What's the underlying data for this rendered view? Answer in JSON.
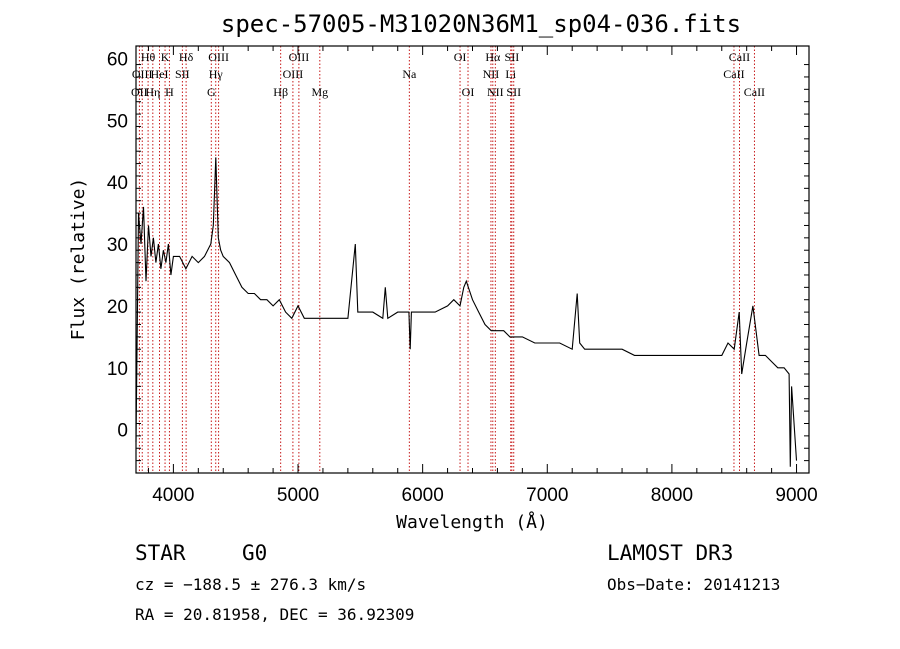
{
  "chart_data": {
    "type": "line",
    "title": "spec-57005-M31020N36M1_sp04-036.fits",
    "xlabel": "Wavelength (Å)",
    "ylabel": "Flux (relative)",
    "xlim": [
      3700,
      9100
    ],
    "ylim": [
      -7,
      62
    ],
    "x_ticks": [
      4000,
      5000,
      6000,
      7000,
      8000,
      9000
    ],
    "y_ticks": [
      0,
      10,
      20,
      30,
      40,
      50,
      60
    ],
    "grid": false,
    "series": [
      {
        "name": "flux",
        "color": "#000000",
        "x": [
          3700,
          3720,
          3740,
          3760,
          3780,
          3800,
          3820,
          3840,
          3860,
          3880,
          3900,
          3920,
          3940,
          3960,
          3980,
          4000,
          4050,
          4100,
          4150,
          4200,
          4250,
          4300,
          4320,
          4340,
          4360,
          4380,
          4400,
          4450,
          4500,
          4550,
          4600,
          4650,
          4700,
          4750,
          4800,
          4850,
          4900,
          4950,
          5000,
          5050,
          5100,
          5150,
          5200,
          5300,
          5400,
          5460,
          5480,
          5500,
          5600,
          5680,
          5700,
          5720,
          5800,
          5890,
          5900,
          5910,
          6000,
          6100,
          6200,
          6250,
          6300,
          6330,
          6350,
          6400,
          6450,
          6500,
          6550,
          6600,
          6650,
          6700,
          6800,
          6900,
          7000,
          7100,
          7200,
          7240,
          7260,
          7300,
          7400,
          7500,
          7600,
          7700,
          7800,
          7900,
          8000,
          8100,
          8200,
          8300,
          8400,
          8450,
          8500,
          8540,
          8560,
          8600,
          8650,
          8700,
          8750,
          8800,
          8850,
          8900,
          8940,
          8950,
          8960,
          9000
        ],
        "y": [
          -2,
          35,
          30,
          36,
          24,
          33,
          28,
          31,
          27,
          30,
          26,
          29,
          27,
          30,
          25,
          28,
          28,
          26,
          28,
          27,
          28,
          30,
          33,
          44,
          31,
          29,
          28,
          27,
          25,
          23,
          22,
          22,
          21,
          21,
          20,
          21,
          19,
          18,
          20,
          18,
          18,
          18,
          18,
          18,
          18,
          30,
          19,
          19,
          19,
          18,
          23,
          18,
          19,
          19,
          13,
          19,
          19,
          19,
          20,
          21,
          20,
          23,
          24,
          21,
          19,
          17,
          16,
          16,
          16,
          15,
          15,
          14,
          14,
          14,
          13,
          22,
          14,
          13,
          13,
          13,
          13,
          12,
          12,
          12,
          12,
          12,
          12,
          12,
          12,
          14,
          13,
          19,
          9,
          14,
          20,
          12,
          12,
          11,
          10,
          10,
          9,
          -6,
          7,
          -5
        ]
      }
    ],
    "line_markers": {
      "color": "#c00000",
      "lines": [
        {
          "wl": 3727,
          "label": "OII",
          "row": 3
        },
        {
          "wl": 3750,
          "label": "OIII",
          "row": 2
        },
        {
          "wl": 3797,
          "label": "Hθ",
          "row": 1
        },
        {
          "wl": 3835,
          "label": "Hη",
          "row": 3
        },
        {
          "wl": 3889,
          "label": "HeI",
          "row": 2
        },
        {
          "wl": 3933,
          "label": "K",
          "row": 1
        },
        {
          "wl": 3968,
          "label": "H",
          "row": 3
        },
        {
          "wl": 4072,
          "label": "SII",
          "row": 2
        },
        {
          "wl": 4102,
          "label": "Hδ",
          "row": 1
        },
        {
          "wl": 4304,
          "label": "G",
          "row": 3
        },
        {
          "wl": 4340,
          "label": "Hγ",
          "row": 2
        },
        {
          "wl": 4363,
          "label": "OIII",
          "row": 1
        },
        {
          "wl": 4861,
          "label": "Hβ",
          "row": 3
        },
        {
          "wl": 4959,
          "label": "OIII",
          "row": 2
        },
        {
          "wl": 5007,
          "label": "OIII",
          "row": 1
        },
        {
          "wl": 5175,
          "label": "Mg",
          "row": 3
        },
        {
          "wl": 5893,
          "label": "Na",
          "row": 2
        },
        {
          "wl": 6300,
          "label": "OI",
          "row": 1
        },
        {
          "wl": 6364,
          "label": "OI",
          "row": 3
        },
        {
          "wl": 6548,
          "label": "NII",
          "row": 2
        },
        {
          "wl": 6563,
          "label": "Hα",
          "row": 1
        },
        {
          "wl": 6583,
          "label": "NII",
          "row": 3
        },
        {
          "wl": 6707,
          "label": "Li",
          "row": 2
        },
        {
          "wl": 6716,
          "label": "SII",
          "row": 1
        },
        {
          "wl": 6731,
          "label": "SII",
          "row": 3
        },
        {
          "wl": 8498,
          "label": "CaII",
          "row": 2
        },
        {
          "wl": 8542,
          "label": "CaII",
          "row": 1
        },
        {
          "wl": 8662,
          "label": "CaII",
          "row": 3
        }
      ]
    }
  },
  "info": {
    "class_label": "STAR",
    "subclass": "G0",
    "survey": "LAMOST DR3",
    "cz": "cz = −188.5 ± 276.3 km/s",
    "obs_date": "Obs−Date: 20141213",
    "radec": "RA =  20.81958, DEC =  36.92309"
  }
}
